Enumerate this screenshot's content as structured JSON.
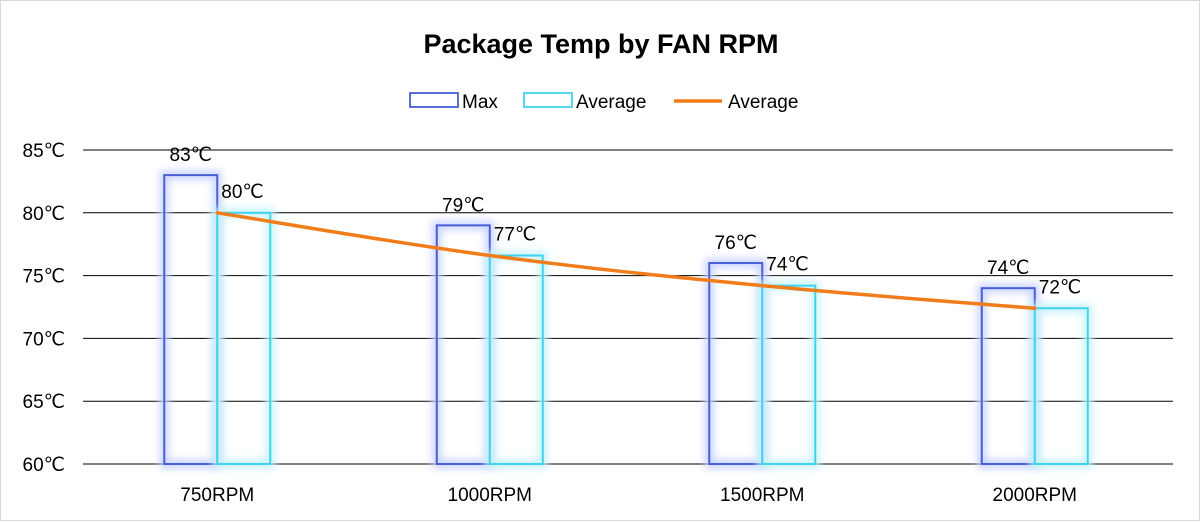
{
  "chart_data": {
    "type": "bar",
    "title": "Package Temp by FAN RPM",
    "xlabel": "",
    "ylabel": "",
    "categories": [
      "750RPM",
      "1000RPM",
      "1500RPM",
      "2000RPM"
    ],
    "ylim": [
      60,
      85
    ],
    "yticks": [
      60,
      65,
      70,
      75,
      80,
      85
    ],
    "ytick_labels": [
      "60℃",
      "65℃",
      "70℃",
      "75℃",
      "80℃",
      "85℃"
    ],
    "grid": true,
    "legend_position": "top-center",
    "series": [
      {
        "name": "Max",
        "kind": "bar",
        "color": "#4a5fd6",
        "glow": "#c9d4ff",
        "values": [
          83,
          79,
          76,
          74
        ],
        "labels": [
          "83℃",
          "79℃",
          "76℃",
          "74℃"
        ]
      },
      {
        "name": "Average",
        "kind": "bar",
        "color": "#3fd3ec",
        "glow": "#c7f3fb",
        "values": [
          80,
          76.6,
          74.2,
          72.4
        ],
        "labels": [
          "80℃",
          "77℃",
          "74℃",
          "72℃"
        ]
      },
      {
        "name": "Average",
        "kind": "line",
        "color": "#f07d1a",
        "values": [
          80,
          76.6,
          74.2,
          72.4
        ]
      }
    ]
  }
}
